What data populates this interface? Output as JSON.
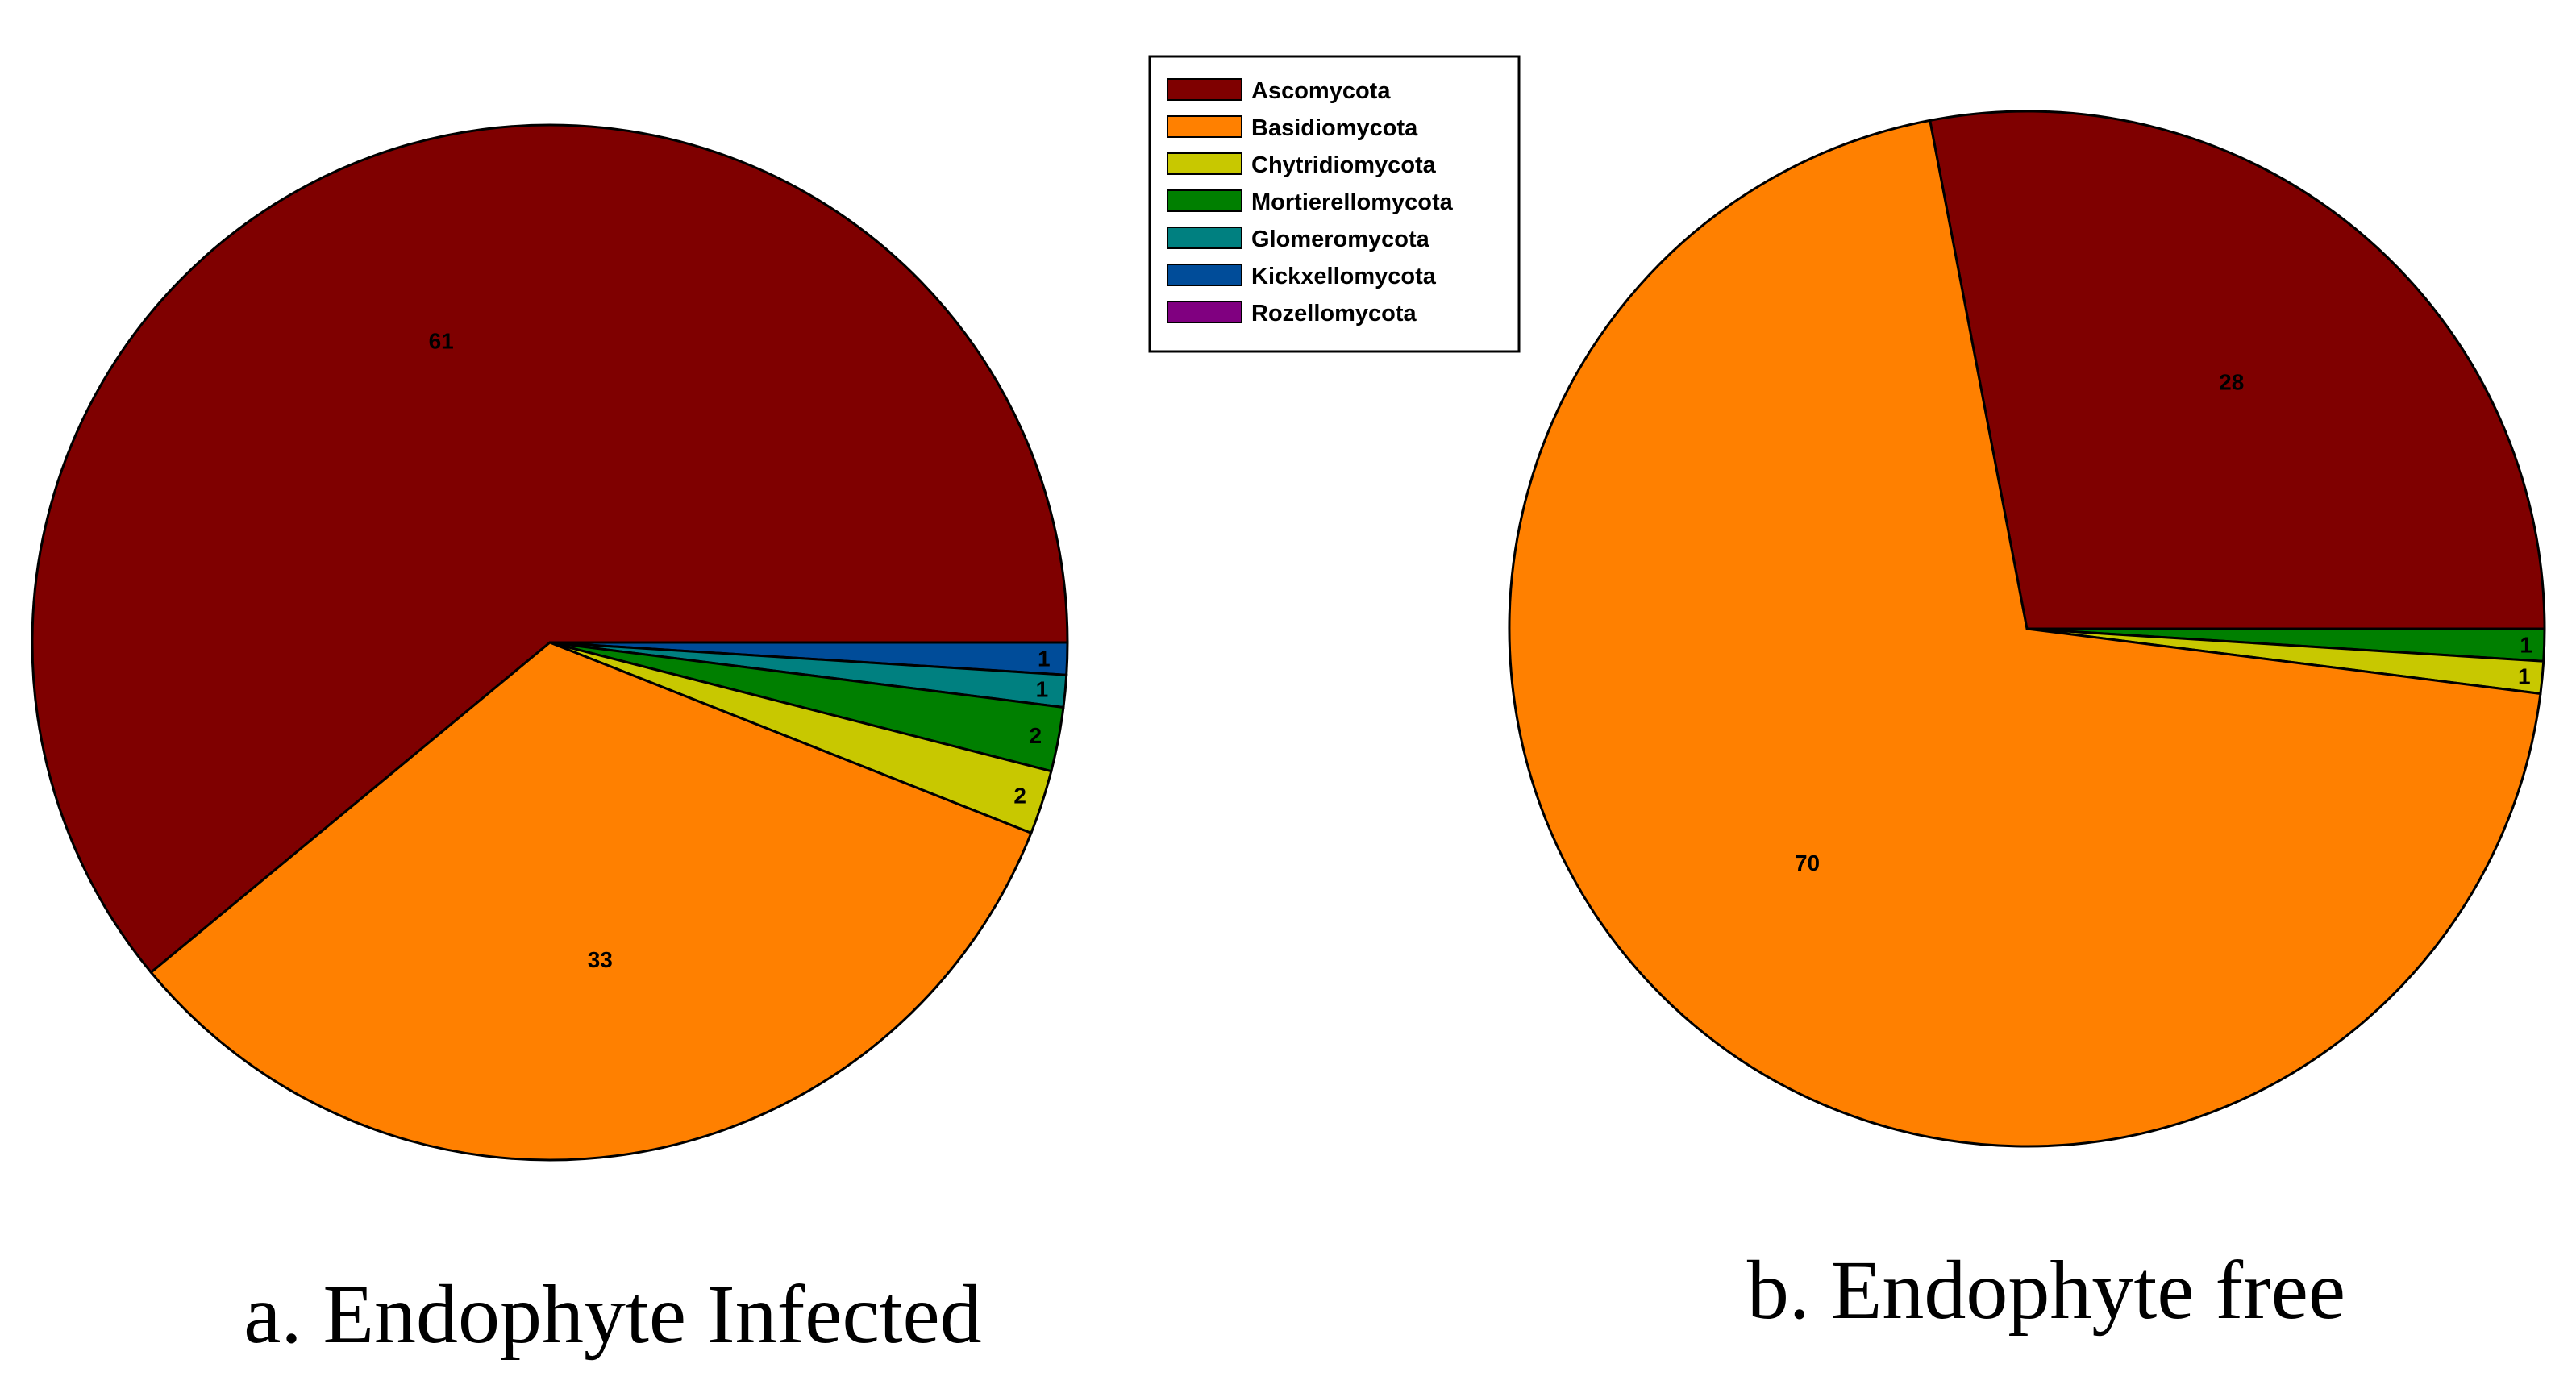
{
  "chart_data": [
    {
      "type": "pie",
      "title": "",
      "caption": "a. Endophyte Infected",
      "slices": [
        {
          "label": "Ascomycota",
          "value": 61,
          "color": "#7f0000"
        },
        {
          "label": "Basidiomycota",
          "value": 33,
          "color": "#ff8000"
        },
        {
          "label": "Chytridiomycota",
          "value": 2,
          "color": "#c8c800"
        },
        {
          "label": "Mortierellomycota",
          "value": 2,
          "color": "#007f00"
        },
        {
          "label": "Glomeromycota",
          "value": 1,
          "color": "#008080"
        },
        {
          "label": "Kickxellomycota",
          "value": 1,
          "color": "#004c99"
        },
        {
          "label": "Rozellomycota",
          "value": 0,
          "color": "#800080"
        }
      ]
    },
    {
      "type": "pie",
      "title": "",
      "caption": "b. Endophyte free",
      "slices": [
        {
          "label": "Ascomycota",
          "value": 28,
          "color": "#7f0000"
        },
        {
          "label": "Basidiomycota",
          "value": 70,
          "color": "#ff8000"
        },
        {
          "label": "Chytridiomycota",
          "value": 1,
          "color": "#c8c800"
        },
        {
          "label": "Mortierellomycota",
          "value": 1,
          "color": "#007f00"
        },
        {
          "label": "Glomeromycota",
          "value": 0,
          "color": "#008080"
        },
        {
          "label": "Kickxellomycota",
          "value": 0,
          "color": "#004c99"
        },
        {
          "label": "Rozellomycota",
          "value": 0,
          "color": "#800080"
        }
      ]
    }
  ],
  "legend": {
    "placement": "top-center",
    "items": [
      {
        "label": "Ascomycota",
        "color": "#7f0000"
      },
      {
        "label": "Basidiomycota",
        "color": "#ff8000"
      },
      {
        "label": "Chytridiomycota",
        "color": "#c8c800"
      },
      {
        "label": "Mortierellomycota",
        "color": "#007f00"
      },
      {
        "label": "Glomeromycota",
        "color": "#008080"
      },
      {
        "label": "Kickxellomycota",
        "color": "#004c99"
      },
      {
        "label": "Rozellomycota",
        "color": "#800080"
      }
    ]
  }
}
